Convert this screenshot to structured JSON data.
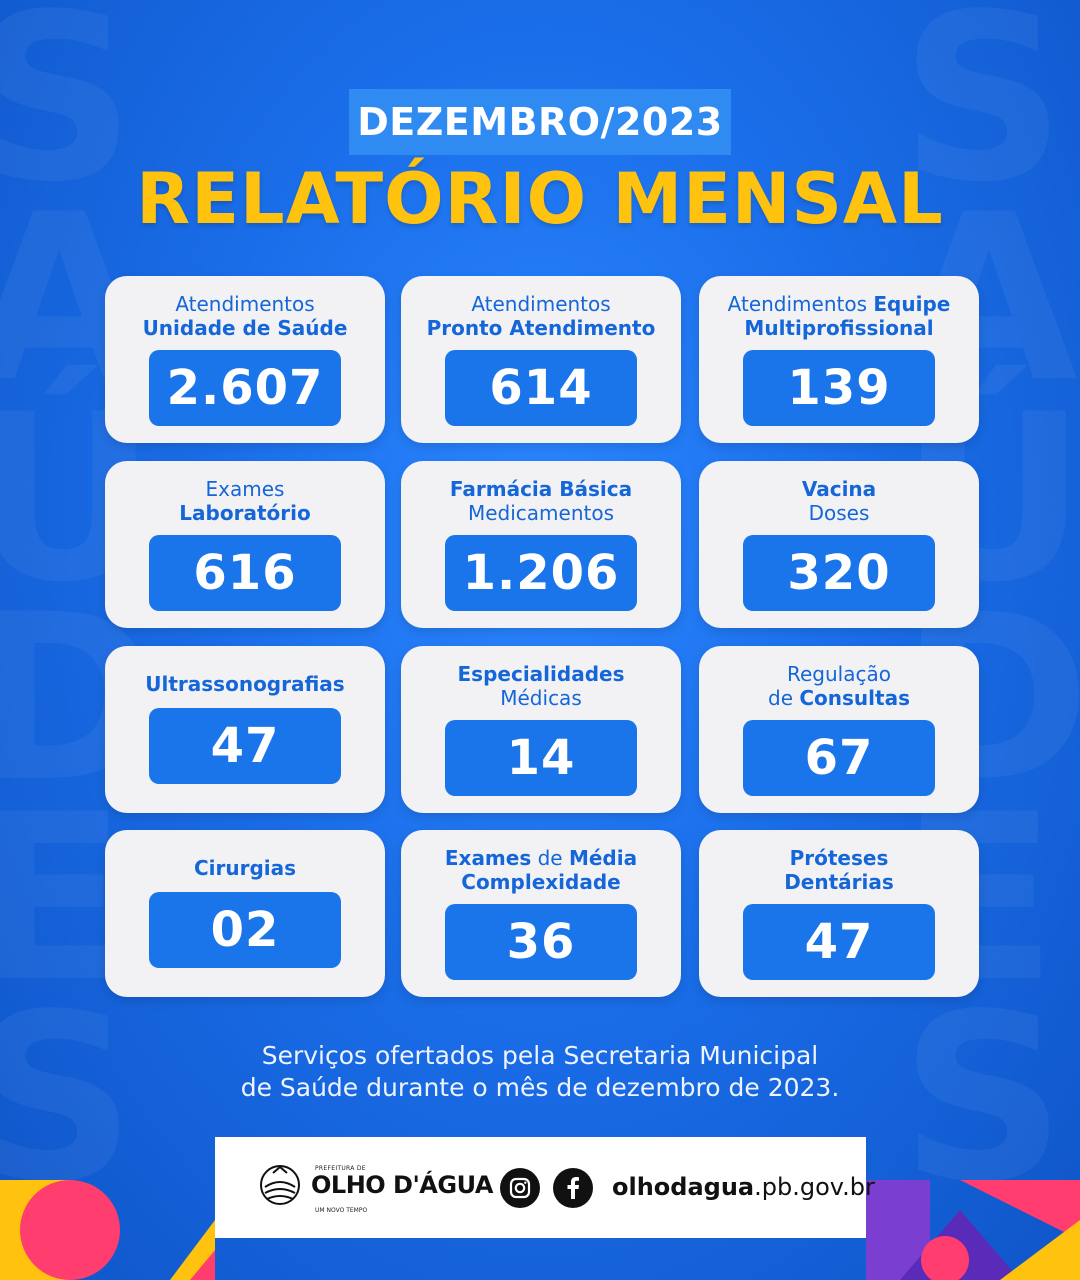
{
  "header": {
    "month": "DEZEMBRO/2023",
    "title": "RELATÓRIO MENSAL"
  },
  "cards": [
    {
      "line1_regular": "Atendimentos",
      "line2_bold": "Unidade de Saúde",
      "value": "2.607"
    },
    {
      "line1_regular": "Atendimentos",
      "line2_bold": "Pronto Atendimento",
      "value": "614"
    },
    {
      "line1_regular": "Atendimentos",
      "line1_bold": "Equipe",
      "line2_bold": "Multiprofissional",
      "value": "139"
    },
    {
      "line1_regular": "Exames",
      "line2_bold": "Laboratório",
      "value": "616"
    },
    {
      "line1_bold": "Farmácia Básica",
      "line2_regular": "Medicamentos",
      "value": "1.206"
    },
    {
      "line1_bold": "Vacina",
      "line2_regular": "Doses",
      "value": "320"
    },
    {
      "line1_bold": "Ultrassonografias",
      "value": "47"
    },
    {
      "line1_bold": "Especialidades",
      "line2_regular": "Médicas",
      "value": "14"
    },
    {
      "line1_regular": "Regulação",
      "line2_regular": "de",
      "line2_bold": "Consultas",
      "value": "67"
    },
    {
      "line1_bold": "Cirurgias",
      "value": "02"
    },
    {
      "line1_bold": "Exames",
      "line1_regular": "de",
      "line1_bold2": "Média",
      "line2_bold": "Complexidade",
      "value": "36"
    },
    {
      "line1_bold": "Próteses",
      "line2_bold": "Dentárias",
      "value": "47"
    }
  ],
  "footer": {
    "line1": "Serviços ofertados pela Secretaria Municipal",
    "line2": "de Saúde durante o mês de dezembro de 2023."
  },
  "brand": {
    "prefix": "PREFEITURA DE",
    "name": "OLHO D'ÁGUA",
    "tagline": "UM NOVO TEMPO",
    "site_bold": "olhodagua",
    "site_rest": ".pb.gov.br",
    "icons": [
      "instagram-icon",
      "facebook-icon"
    ]
  },
  "colors": {
    "background": "#1a6de8",
    "title": "#ffc20e",
    "card": "#f2f2f4",
    "value_box": "#1a74ea",
    "label": "#1566d8"
  }
}
